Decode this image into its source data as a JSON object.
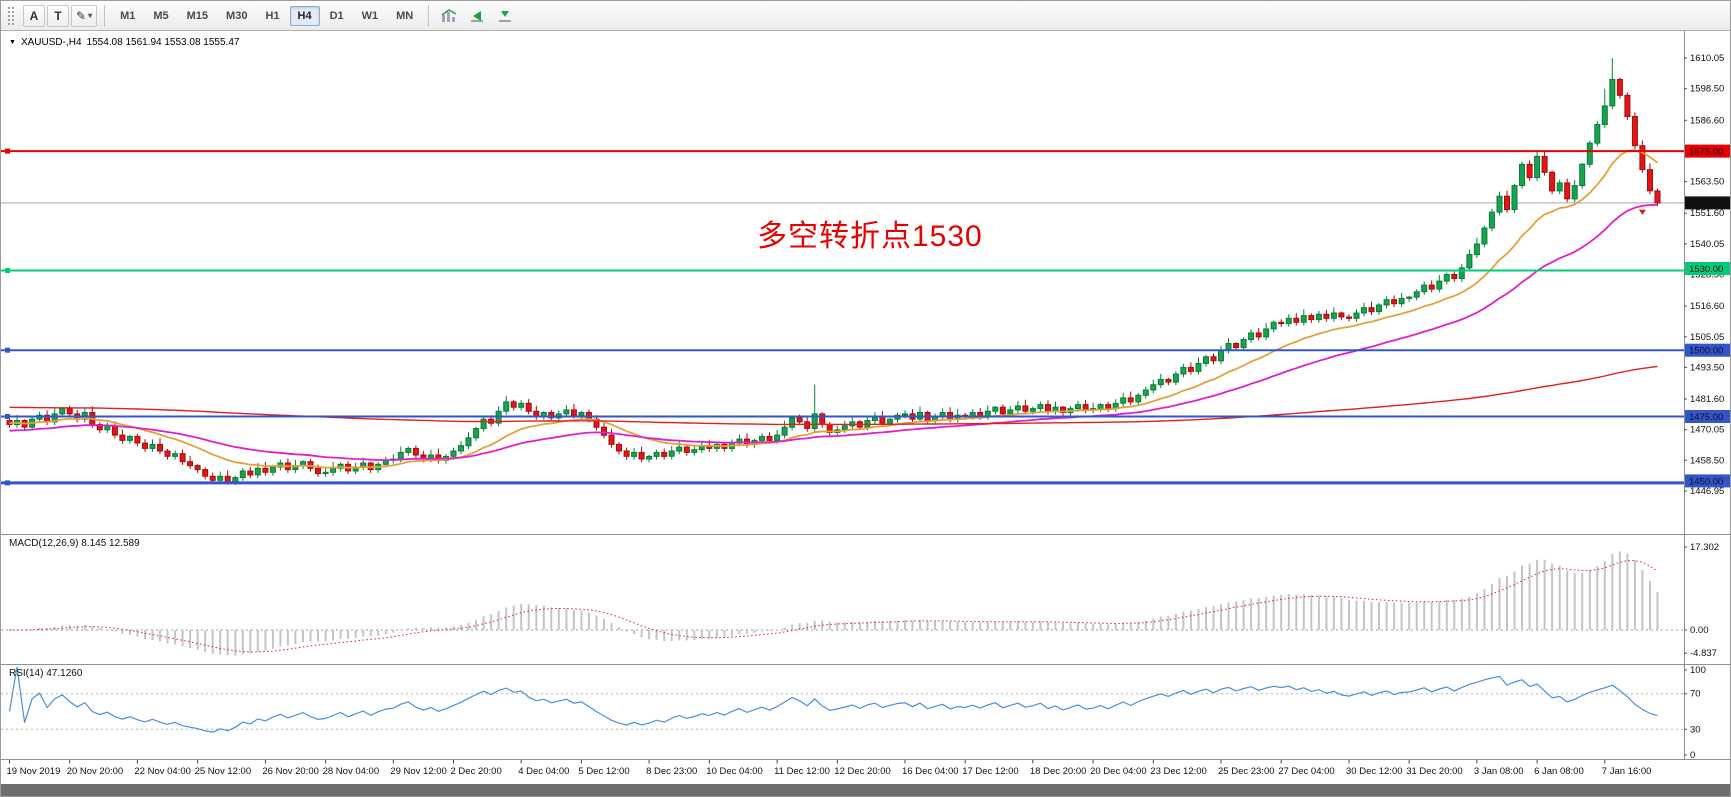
{
  "toolbar": {
    "tools": [
      {
        "name": "text-label-tool",
        "label": "A"
      },
      {
        "name": "text-tool",
        "label": "T"
      },
      {
        "name": "draw-tool",
        "glyph": "✎"
      }
    ],
    "caret_glyph": "▾",
    "timeframes": [
      "M1",
      "M5",
      "M15",
      "M30",
      "H1",
      "H4",
      "D1",
      "W1",
      "MN"
    ],
    "active_timeframe": "H4",
    "right_icons": [
      "indicators-icon",
      "auto-scroll-icon",
      "chart-shift-icon"
    ]
  },
  "chart": {
    "symbol": "XAUUSD-,H4",
    "ohlc_text": "1554.08 1561.94 1553.08 1555.47",
    "annotation": "多空转折点1530",
    "current_price": 1555.47,
    "current_price_label": "1555.47",
    "price_ticks": [
      "1610.05",
      "1598.50",
      "1586.60",
      "1563.50",
      "1551.60",
      "1540.05",
      "1528.50",
      "1516.60",
      "1505.05",
      "1493.50",
      "1481.60",
      "1470.05",
      "1458.50",
      "1446.95"
    ],
    "hlines": [
      {
        "price": 1575.0,
        "label": "1575.00",
        "color": "#e60000",
        "width": 2,
        "badge_dy": 0
      },
      {
        "price": 1530.0,
        "label": "1530.00",
        "color": "#00cc7a",
        "width": 2,
        "badge_dy": -2
      },
      {
        "price": 1500.0,
        "label": "1500.00",
        "color": "#3355cc",
        "width": 2,
        "badge_dy": 0
      },
      {
        "price": 1475.0,
        "label": "1475.00",
        "color": "#3355cc",
        "width": 2,
        "badge_dy": 0
      },
      {
        "price": 1450.0,
        "label": "1450.00",
        "color": "#3355cc",
        "width": 3,
        "badge_dy": -2
      }
    ],
    "sell_marker": {
      "bar": 217,
      "price": 1551.0
    }
  },
  "macd": {
    "label": "MACD(12,26,9) 8.145 12.589",
    "ticks": [
      {
        "v": 17.302,
        "t": "17.302"
      },
      {
        "v": 0,
        "t": "0.00"
      },
      {
        "v": -4.837,
        "t": "-4.837"
      }
    ]
  },
  "rsi": {
    "label": "RSI(14) 47.1260",
    "ticks": [
      {
        "v": 100,
        "t": "100"
      },
      {
        "v": 70,
        "t": "70"
      },
      {
        "v": 30,
        "t": "30"
      },
      {
        "v": 0,
        "t": "0"
      }
    ],
    "levels": [
      70,
      30
    ]
  },
  "time_axis": [
    {
      "b": 0,
      "t": "19 Nov 2019"
    },
    {
      "b": 8,
      "t": "20 Nov 20:00"
    },
    {
      "b": 17,
      "t": "22 Nov 04:00"
    },
    {
      "b": 25,
      "t": "25 Nov 12:00"
    },
    {
      "b": 34,
      "t": "26 Nov 20:00"
    },
    {
      "b": 42,
      "t": "28 Nov 04:00"
    },
    {
      "b": 51,
      "t": "29 Nov 12:00"
    },
    {
      "b": 59,
      "t": "2 Dec 20:00"
    },
    {
      "b": 68,
      "t": "4 Dec 04:00"
    },
    {
      "b": 76,
      "t": "5 Dec 12:00"
    },
    {
      "b": 85,
      "t": "8 Dec 23:00"
    },
    {
      "b": 93,
      "t": "10 Dec 04:00"
    },
    {
      "b": 102,
      "t": "11 Dec 12:00"
    },
    {
      "b": 110,
      "t": "12 Dec 20:00"
    },
    {
      "b": 119,
      "t": "16 Dec 04:00"
    },
    {
      "b": 127,
      "t": "17 Dec 12:00"
    },
    {
      "b": 136,
      "t": "18 Dec 20:00"
    },
    {
      "b": 144,
      "t": "20 Dec 04:00"
    },
    {
      "b": 152,
      "t": "23 Dec 12:00"
    },
    {
      "b": 161,
      "t": "25 Dec 23:00"
    },
    {
      "b": 169,
      "t": "27 Dec 04:00"
    },
    {
      "b": 178,
      "t": "30 Dec 12:00"
    },
    {
      "b": 186,
      "t": "31 Dec 20:00"
    },
    {
      "b": 195,
      "t": "3 Jan 08:00"
    },
    {
      "b": 203,
      "t": "6 Jan 08:00"
    },
    {
      "b": 212,
      "t": "7 Jan 16:00"
    }
  ],
  "chart_data": {
    "type": "candlestick",
    "symbol": "XAUUSD",
    "timeframe": "H4",
    "bars": 220,
    "price_range": [
      1446.95,
      1610.05
    ],
    "closes": [
      1472,
      1473.5,
      1471,
      1474,
      1475.5,
      1473,
      1476,
      1478,
      1476,
      1474,
      1476.5,
      1472,
      1470,
      1471.5,
      1468,
      1466,
      1467.5,
      1465,
      1463,
      1464.5,
      1462,
      1460,
      1461,
      1458,
      1456.5,
      1455,
      1452.5,
      1451,
      1452.5,
      1450.5,
      1452,
      1454.5,
      1453,
      1455.5,
      1454,
      1456,
      1457.5,
      1455,
      1456.5,
      1458,
      1455.5,
      1453.5,
      1454,
      1455.5,
      1457,
      1454.5,
      1456,
      1457.5,
      1455,
      1457,
      1458.5,
      1459,
      1461.5,
      1463,
      1460.5,
      1459,
      1460.5,
      1458.5,
      1460,
      1462,
      1464,
      1467,
      1470.5,
      1474,
      1472.5,
      1477,
      1480.5,
      1478.5,
      1480,
      1477,
      1475,
      1476.5,
      1474.5,
      1476,
      1477.5,
      1475.5,
      1476.5,
      1474,
      1471,
      1468,
      1464.5,
      1462,
      1460,
      1461.5,
      1459,
      1460,
      1461.5,
      1460,
      1462,
      1463.5,
      1461.5,
      1462.5,
      1464,
      1463,
      1464.5,
      1463,
      1465,
      1466.5,
      1464.5,
      1466,
      1467.5,
      1466,
      1468,
      1471,
      1474.5,
      1473,
      1470.5,
      1476,
      1472,
      1469,
      1470,
      1471.5,
      1473,
      1471,
      1473.5,
      1475,
      1472.5,
      1474,
      1475.5,
      1476,
      1474,
      1476.5,
      1473.5,
      1475,
      1476.5,
      1474,
      1475.5,
      1475,
      1476.5,
      1475,
      1477,
      1478.5,
      1476,
      1477.5,
      1479,
      1477,
      1478,
      1479.5,
      1477,
      1478.5,
      1476.5,
      1478,
      1479.5,
      1477.5,
      1478,
      1479.5,
      1478,
      1480,
      1482,
      1480.5,
      1483,
      1485,
      1487,
      1489,
      1488,
      1491,
      1493.5,
      1492,
      1495,
      1497.5,
      1496,
      1500,
      1502.5,
      1501,
      1504,
      1506.5,
      1505,
      1508,
      1510.5,
      1510,
      1512,
      1510.5,
      1513,
      1511.5,
      1513.5,
      1512,
      1514,
      1512.5,
      1512,
      1514,
      1516,
      1514.5,
      1517,
      1519,
      1517.5,
      1519.5,
      1520,
      1522,
      1524.5,
      1523,
      1526,
      1528.5,
      1527,
      1531,
      1536,
      1540,
      1546,
      1552,
      1558,
      1553,
      1562,
      1570,
      1565,
      1573,
      1567,
      1560,
      1563,
      1557,
      1562,
      1570,
      1578,
      1585,
      1592,
      1602,
      1596,
      1588,
      1577,
      1568,
      1560,
      1555.47
    ],
    "wick_overrides": {
      "29": {
        "low": 1449.3
      },
      "107": {
        "high": 1487.0
      },
      "212": {
        "high": 1598.5
      },
      "213": {
        "high": 1610.05
      }
    },
    "moving_averages": [
      {
        "name": "fast-ma",
        "color": "#e2a23a",
        "alpha": 0.12,
        "init": 1472.5,
        "width": 1.8
      },
      {
        "name": "medium-ma",
        "color": "#dd22cc",
        "alpha": 0.05,
        "init": 1469.5,
        "width": 1.8
      },
      {
        "name": "slow-ma",
        "color": "#dd2222",
        "alpha": 0.006,
        "init": 1478.5,
        "width": 1.4
      }
    ],
    "macd_params": [
      12,
      26,
      9
    ],
    "rsi_period": 14,
    "hline_levels": [
      1575,
      1530,
      1500,
      1475,
      1450
    ]
  },
  "colors": {
    "bull": "#17a44f",
    "bull_border": "#0b7d39",
    "bear": "#e31515",
    "bear_border": "#a30d0d",
    "grid": "#909090",
    "price_line": "#a8a8a8",
    "macd_hist": "#c4c4c4",
    "macd_signal": "#e02020",
    "rsi_line": "#4a90d9",
    "badge_black": "#111111",
    "annotation": "#e60000",
    "bottom_strip": "#6e6e6e"
  }
}
